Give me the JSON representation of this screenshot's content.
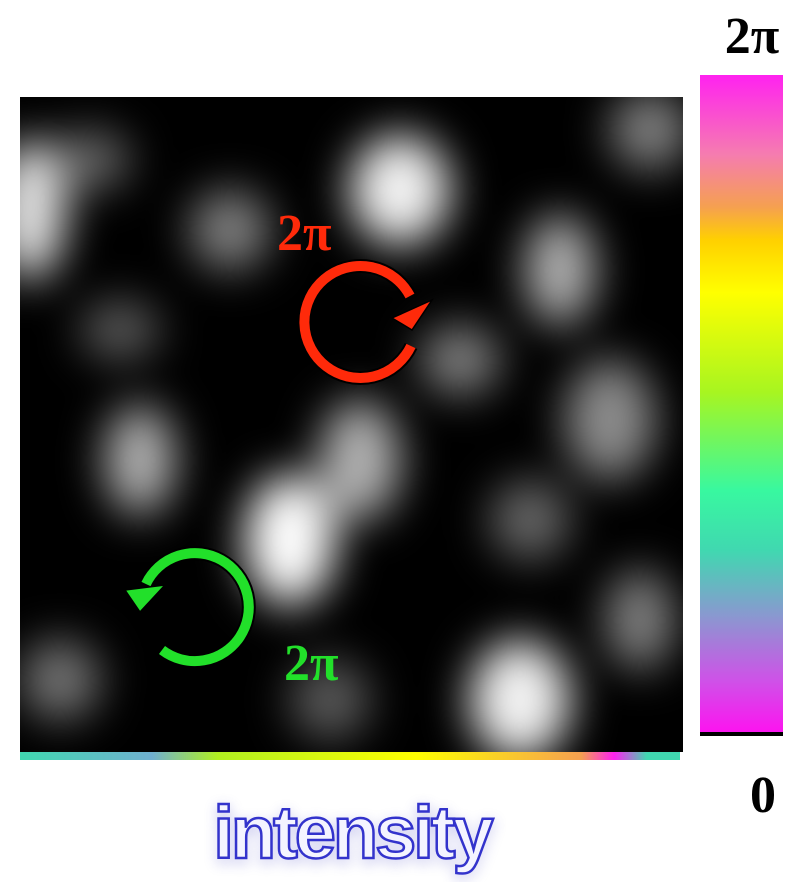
{
  "colorbar": {
    "max_label": "2π",
    "min_label": "0"
  },
  "annotations": [
    {
      "label": "2π",
      "color": "#ff2a0a"
    },
    {
      "label": "2π",
      "color": "#22e02a"
    }
  ],
  "caption": "intensity"
}
